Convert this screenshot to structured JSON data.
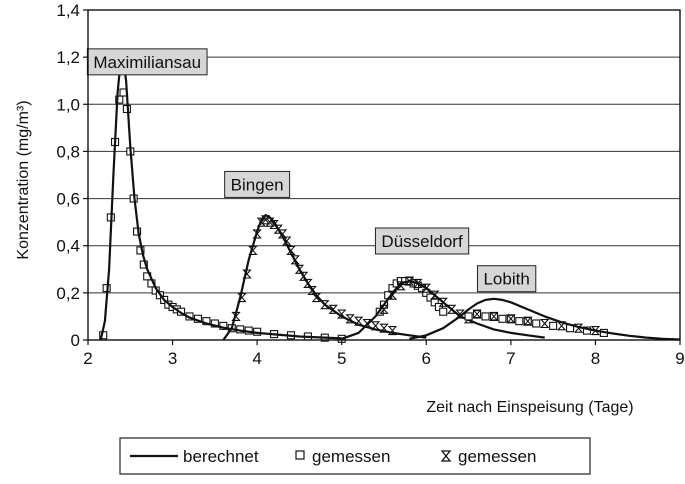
{
  "chart_data": {
    "type": "line",
    "xlabel": "Zeit nach Einspeisung (Tage)",
    "ylabel": "Konzentration (mg/m³)",
    "xlim": [
      2,
      9
    ],
    "ylim": [
      0,
      1.4
    ],
    "x_ticks": [
      "2",
      "3",
      "4",
      "5",
      "6",
      "7",
      "8",
      "9"
    ],
    "y_ticks": [
      "0",
      "0,2",
      "0,4",
      "0,6",
      "0,8",
      "1,0",
      "1,2",
      "1,4"
    ],
    "grid": "horizontal",
    "legend_position": "bottom",
    "legend": [
      {
        "label": "berechnet",
        "marker": "line"
      },
      {
        "label": "gemessen",
        "marker": "square"
      },
      {
        "label": "gemessen",
        "marker": "hourglass"
      }
    ],
    "stations": [
      {
        "name": "Maximiliansau",
        "label_at": [
          2.7,
          1.18
        ],
        "berechnet": {
          "x": [
            2.15,
            2.2,
            2.25,
            2.3,
            2.35,
            2.4,
            2.45,
            2.5,
            2.55,
            2.6,
            2.65,
            2.7,
            2.8,
            2.9,
            3.0,
            3.1,
            3.2,
            3.4,
            3.6,
            3.8,
            4.0,
            4.5,
            5.0
          ],
          "y": [
            0,
            0.08,
            0.3,
            0.7,
            1.05,
            1.23,
            1.1,
            0.82,
            0.6,
            0.45,
            0.36,
            0.3,
            0.22,
            0.17,
            0.14,
            0.115,
            0.095,
            0.07,
            0.052,
            0.04,
            0.03,
            0.015,
            0.007
          ]
        },
        "gemessen": {
          "marker": "square",
          "x": [
            2.18,
            2.22,
            2.27,
            2.32,
            2.37,
            2.42,
            2.46,
            2.5,
            2.54,
            2.58,
            2.62,
            2.66,
            2.7,
            2.75,
            2.8,
            2.85,
            2.9,
            2.95,
            3.0,
            3.05,
            3.1,
            3.2,
            3.3,
            3.4,
            3.5,
            3.6,
            3.7,
            3.8,
            3.9,
            4.0,
            4.2,
            4.4,
            4.6,
            4.8,
            5.0
          ],
          "y": [
            0.02,
            0.22,
            0.52,
            0.84,
            1.02,
            1.05,
            0.98,
            0.8,
            0.6,
            0.46,
            0.38,
            0.32,
            0.27,
            0.24,
            0.21,
            0.19,
            0.17,
            0.15,
            0.14,
            0.13,
            0.12,
            0.1,
            0.09,
            0.08,
            0.07,
            0.06,
            0.05,
            0.045,
            0.04,
            0.035,
            0.025,
            0.02,
            0.015,
            0.01,
            0.005
          ]
        }
      },
      {
        "name": "Bingen",
        "label_at": [
          4.0,
          0.66
        ],
        "berechnet": {
          "x": [
            3.6,
            3.7,
            3.8,
            3.9,
            4.0,
            4.05,
            4.1,
            4.15,
            4.2,
            4.3,
            4.4,
            4.5,
            4.6,
            4.7,
            4.8,
            5.0,
            5.2,
            5.4,
            5.6,
            5.8,
            6.0
          ],
          "y": [
            0,
            0.05,
            0.18,
            0.34,
            0.46,
            0.51,
            0.53,
            0.52,
            0.5,
            0.44,
            0.37,
            0.3,
            0.24,
            0.19,
            0.15,
            0.1,
            0.065,
            0.045,
            0.03,
            0.02,
            0.01
          ]
        },
        "gemessen": {
          "marker": "hourglass",
          "x": [
            3.75,
            3.82,
            3.88,
            3.95,
            4.0,
            4.05,
            4.1,
            4.15,
            4.2,
            4.25,
            4.3,
            4.35,
            4.4,
            4.45,
            4.5,
            4.55,
            4.6,
            4.65,
            4.7,
            4.8,
            4.9,
            5.0,
            5.1,
            5.2,
            5.3,
            5.4,
            5.5,
            5.6
          ],
          "y": [
            0.1,
            0.18,
            0.28,
            0.38,
            0.45,
            0.5,
            0.51,
            0.5,
            0.49,
            0.47,
            0.45,
            0.42,
            0.38,
            0.34,
            0.3,
            0.27,
            0.24,
            0.21,
            0.18,
            0.15,
            0.13,
            0.11,
            0.09,
            0.08,
            0.07,
            0.06,
            0.05,
            0.04
          ]
        }
      },
      {
        "name": "Düsseldorf",
        "label_at": [
          5.95,
          0.42
        ],
        "berechnet": {
          "x": [
            5.0,
            5.2,
            5.4,
            5.5,
            5.6,
            5.7,
            5.8,
            5.9,
            6.0,
            6.1,
            6.2,
            6.3,
            6.4,
            6.6,
            6.8,
            7.0,
            7.2,
            7.4
          ],
          "y": [
            0.005,
            0.03,
            0.1,
            0.15,
            0.2,
            0.24,
            0.25,
            0.24,
            0.22,
            0.19,
            0.16,
            0.13,
            0.1,
            0.07,
            0.045,
            0.03,
            0.02,
            0.01
          ]
        },
        "gemessen": {
          "marker": "square",
          "x": [
            5.45,
            5.5,
            5.55,
            5.6,
            5.65,
            5.7,
            5.75,
            5.8,
            5.85,
            5.9,
            5.95,
            6.0,
            6.05,
            6.1,
            6.15,
            6.2
          ],
          "y": [
            0.12,
            0.15,
            0.19,
            0.22,
            0.24,
            0.25,
            0.25,
            0.25,
            0.24,
            0.23,
            0.22,
            0.2,
            0.18,
            0.16,
            0.14,
            0.12
          ]
        },
        "gemessen_2": {
          "marker": "hourglass",
          "x": [
            5.5,
            5.6,
            5.7,
            5.8,
            5.9,
            6.0,
            6.1,
            6.2,
            6.3,
            6.4,
            6.5
          ],
          "y": [
            0.13,
            0.19,
            0.23,
            0.25,
            0.24,
            0.22,
            0.19,
            0.16,
            0.13,
            0.11,
            0.09
          ]
        }
      },
      {
        "name": "Lobith",
        "label_at": [
          6.95,
          0.26
        ],
        "berechnet": {
          "x": [
            5.8,
            6.0,
            6.2,
            6.4,
            6.5,
            6.6,
            6.7,
            6.8,
            6.9,
            7.0,
            7.2,
            7.4,
            7.6,
            7.8,
            8.0,
            8.2,
            8.4,
            8.6,
            8.8,
            9.0
          ],
          "y": [
            0.005,
            0.02,
            0.05,
            0.1,
            0.13,
            0.155,
            0.17,
            0.175,
            0.17,
            0.16,
            0.13,
            0.1,
            0.075,
            0.055,
            0.04,
            0.028,
            0.018,
            0.01,
            0.005,
            0.002
          ]
        },
        "gemessen": {
          "marker": "square",
          "x": [
            6.5,
            6.6,
            6.7,
            6.8,
            6.9,
            7.0,
            7.1,
            7.2,
            7.3,
            7.5,
            7.7,
            7.9,
            8.1
          ],
          "y": [
            0.1,
            0.11,
            0.1,
            0.1,
            0.09,
            0.09,
            0.08,
            0.08,
            0.07,
            0.06,
            0.05,
            0.04,
            0.03
          ]
        },
        "gemessen_2": {
          "marker": "hourglass",
          "x": [
            6.6,
            6.8,
            7.0,
            7.2,
            7.4,
            7.6,
            7.8,
            8.0
          ],
          "y": [
            0.11,
            0.1,
            0.09,
            0.08,
            0.07,
            0.06,
            0.05,
            0.04
          ]
        }
      }
    ]
  }
}
